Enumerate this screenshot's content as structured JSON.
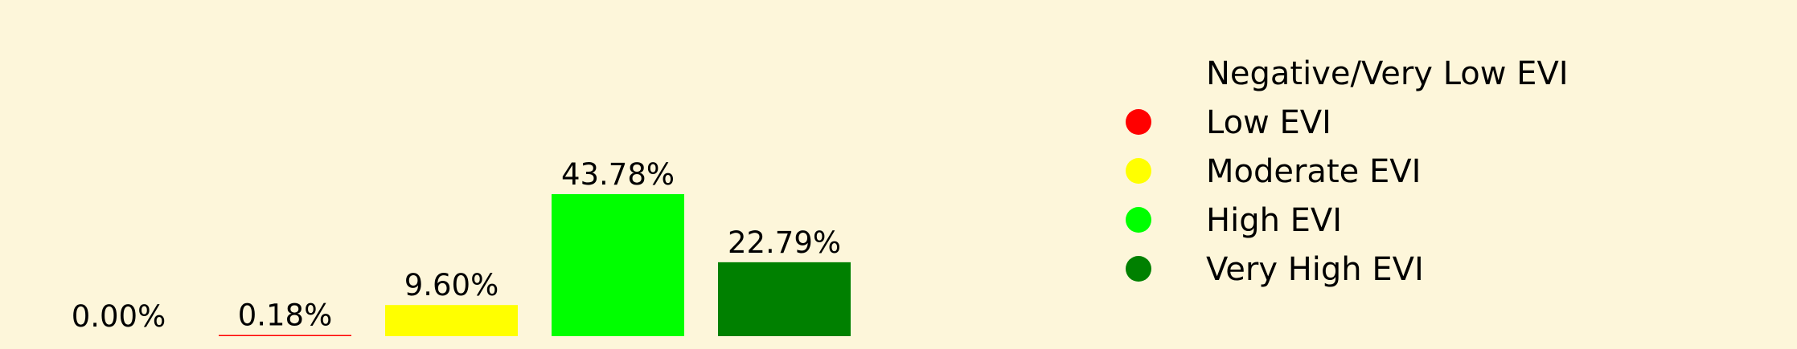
{
  "chart_data": {
    "type": "bar",
    "categories": [
      "Negative/Very Low EVI",
      "Low EVI",
      "Moderate EVI",
      "High EVI",
      "Very High EVI"
    ],
    "values": [
      0.0,
      0.18,
      9.6,
      43.78,
      22.79
    ],
    "data_labels": [
      "0.00%",
      "0.18%",
      "9.60%",
      "43.78%",
      "22.79%"
    ],
    "colors": [
      "#fdf6da",
      "#ff0000",
      "#ffff00",
      "#00ff00",
      "#008000"
    ],
    "legend": {
      "placement": "right",
      "entries": [
        {
          "label": "Negative/Very Low EVI",
          "color": "#fdf6da"
        },
        {
          "label": "Low EVI",
          "color": "#ff0000"
        },
        {
          "label": "Moderate EVI",
          "color": "#ffff00"
        },
        {
          "label": "High EVI",
          "color": "#00ff00"
        },
        {
          "label": "Very High EVI",
          "color": "#008000"
        }
      ]
    },
    "grid": false,
    "ylim": [
      0,
      45
    ]
  }
}
